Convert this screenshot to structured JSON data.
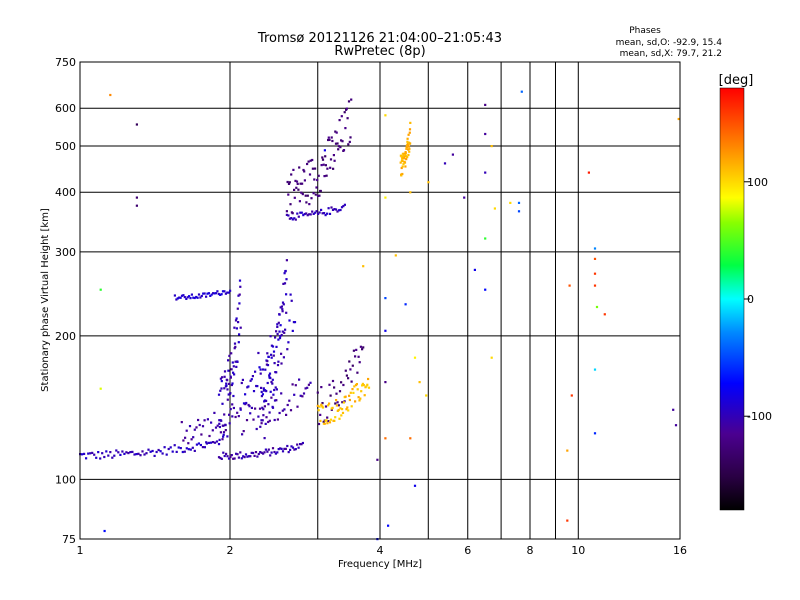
{
  "chart_data": {
    "type": "scatter",
    "title_line1": "Tromsø 20121126 21:04:00–21:05:43",
    "title_line2": "RwPretec (8p)",
    "xlabel": "Frequency [MHz]",
    "ylabel": "Stationary phase Virtual Height [km]",
    "x_scale": "log",
    "y_scale": "log",
    "xlim": [
      1,
      16
    ],
    "ylim": [
      75,
      750
    ],
    "x_ticks": [
      1,
      2,
      4,
      6,
      8,
      10,
      16
    ],
    "x_ticks_minor": [
      3,
      5,
      7,
      9
    ],
    "y_ticks": [
      75,
      100,
      200,
      300,
      400,
      500,
      600,
      750
    ],
    "grid": true,
    "phases": {
      "title": "Phases",
      "line_o": "mean, sd,O: -92.9, 15.4",
      "line_x": "mean, sd,X:  79.7, 21.2"
    },
    "colorbar": {
      "unit": "[deg]",
      "range": [
        -180,
        180
      ],
      "ticks": [
        100,
        0,
        -100
      ],
      "tick_labels": [
        "100",
        "0",
        "-100"
      ]
    },
    "traces": [
      {
        "x_range": [
          1.0,
          1.9
        ],
        "y_range": [
          110,
          122
        ],
        "phase": -98,
        "count": 70
      },
      {
        "x_range": [
          1.9,
          2.8
        ],
        "y_range": [
          110,
          120
        ],
        "phase": -105,
        "count": 60
      },
      {
        "x_range": [
          1.6,
          2.9
        ],
        "y_range": [
          118,
          170
        ],
        "phase": -108,
        "count": 80
      },
      {
        "x_range": [
          1.9,
          2.1
        ],
        "y_range": [
          115,
          280
        ],
        "phase": -100,
        "count": 70
      },
      {
        "x_range": [
          2.3,
          2.6
        ],
        "y_range": [
          120,
          300
        ],
        "phase": -100,
        "count": 70
      },
      {
        "x_range": [
          2.1,
          2.7
        ],
        "y_range": [
          140,
          270
        ],
        "phase": -95,
        "count": 50
      },
      {
        "x_range": [
          1.55,
          2.0
        ],
        "y_range": [
          238,
          252
        ],
        "phase": -90,
        "count": 40
      },
      {
        "x_range": [
          2.6,
          3.4
        ],
        "y_range": [
          350,
          380
        ],
        "phase": -100,
        "count": 40
      },
      {
        "x_range": [
          2.6,
          3.5
        ],
        "y_range": [
          360,
          640
        ],
        "phase": -125,
        "count": 90
      },
      {
        "x_range": [
          3.0,
          3.7
        ],
        "y_range": [
          130,
          210
        ],
        "phase": -125,
        "count": 40
      },
      {
        "x_range": [
          3.0,
          3.8
        ],
        "y_range": [
          130,
          170
        ],
        "phase": 110,
        "count": 60
      },
      {
        "x_range": [
          4.4,
          4.6
        ],
        "y_range": [
          430,
          560
        ],
        "phase": 115,
        "count": 50
      }
    ],
    "points": [
      {
        "x": 1.15,
        "y": 640,
        "phase": 130
      },
      {
        "x": 1.3,
        "y": 555,
        "phase": -140
      },
      {
        "x": 1.3,
        "y": 390,
        "phase": -130
      },
      {
        "x": 1.3,
        "y": 375,
        "phase": -130
      },
      {
        "x": 1.1,
        "y": 250,
        "phase": 40
      },
      {
        "x": 1.1,
        "y": 155,
        "phase": 80
      },
      {
        "x": 1.12,
        "y": 78,
        "phase": -70
      },
      {
        "x": 3.1,
        "y": 490,
        "phase": -80
      },
      {
        "x": 3.7,
        "y": 280,
        "phase": 110
      },
      {
        "x": 3.95,
        "y": 110,
        "phase": -120
      },
      {
        "x": 3.95,
        "y": 75,
        "phase": -70
      },
      {
        "x": 4.1,
        "y": 580,
        "phase": 100
      },
      {
        "x": 4.1,
        "y": 390,
        "phase": 90
      },
      {
        "x": 4.1,
        "y": 240,
        "phase": -50
      },
      {
        "x": 4.1,
        "y": 205,
        "phase": -80
      },
      {
        "x": 4.1,
        "y": 160,
        "phase": -120
      },
      {
        "x": 4.1,
        "y": 122,
        "phase": 140
      },
      {
        "x": 4.15,
        "y": 80,
        "phase": -70
      },
      {
        "x": 4.3,
        "y": 295,
        "phase": 110
      },
      {
        "x": 4.5,
        "y": 233,
        "phase": -60
      },
      {
        "x": 4.6,
        "y": 400,
        "phase": 110
      },
      {
        "x": 4.6,
        "y": 122,
        "phase": 140
      },
      {
        "x": 4.7,
        "y": 97,
        "phase": -80
      },
      {
        "x": 4.7,
        "y": 180,
        "phase": 90
      },
      {
        "x": 4.8,
        "y": 160,
        "phase": 110
      },
      {
        "x": 4.95,
        "y": 150,
        "phase": 100
      },
      {
        "x": 5.0,
        "y": 420,
        "phase": 110
      },
      {
        "x": 5.4,
        "y": 460,
        "phase": -100
      },
      {
        "x": 5.6,
        "y": 480,
        "phase": -110
      },
      {
        "x": 5.9,
        "y": 390,
        "phase": -110
      },
      {
        "x": 6.2,
        "y": 275,
        "phase": -80
      },
      {
        "x": 6.5,
        "y": 610,
        "phase": -120
      },
      {
        "x": 6.5,
        "y": 530,
        "phase": -110
      },
      {
        "x": 6.5,
        "y": 440,
        "phase": -100
      },
      {
        "x": 6.5,
        "y": 320,
        "phase": 40
      },
      {
        "x": 6.5,
        "y": 250,
        "phase": -70
      },
      {
        "x": 6.7,
        "y": 500,
        "phase": 110
      },
      {
        "x": 6.7,
        "y": 180,
        "phase": 100
      },
      {
        "x": 6.8,
        "y": 370,
        "phase": 100
      },
      {
        "x": 7.3,
        "y": 380,
        "phase": 100
      },
      {
        "x": 7.6,
        "y": 380,
        "phase": -40
      },
      {
        "x": 7.6,
        "y": 365,
        "phase": -50
      },
      {
        "x": 7.7,
        "y": 650,
        "phase": -40
      },
      {
        "x": 9.5,
        "y": 115,
        "phase": 120
      },
      {
        "x": 9.5,
        "y": 82,
        "phase": 160
      },
      {
        "x": 9.6,
        "y": 255,
        "phase": 150
      },
      {
        "x": 9.7,
        "y": 150,
        "phase": 160
      },
      {
        "x": 10.5,
        "y": 440,
        "phase": 170
      },
      {
        "x": 10.8,
        "y": 305,
        "phase": -30
      },
      {
        "x": 10.8,
        "y": 290,
        "phase": 150
      },
      {
        "x": 10.8,
        "y": 270,
        "phase": 160
      },
      {
        "x": 10.8,
        "y": 255,
        "phase": 160
      },
      {
        "x": 10.8,
        "y": 170,
        "phase": -10
      },
      {
        "x": 10.8,
        "y": 125,
        "phase": -60
      },
      {
        "x": 10.9,
        "y": 230,
        "phase": 60
      },
      {
        "x": 11.3,
        "y": 222,
        "phase": 160
      },
      {
        "x": 15.5,
        "y": 140,
        "phase": -110
      },
      {
        "x": 15.7,
        "y": 130,
        "phase": -110
      },
      {
        "x": 15.9,
        "y": 570,
        "phase": 120
      }
    ]
  }
}
